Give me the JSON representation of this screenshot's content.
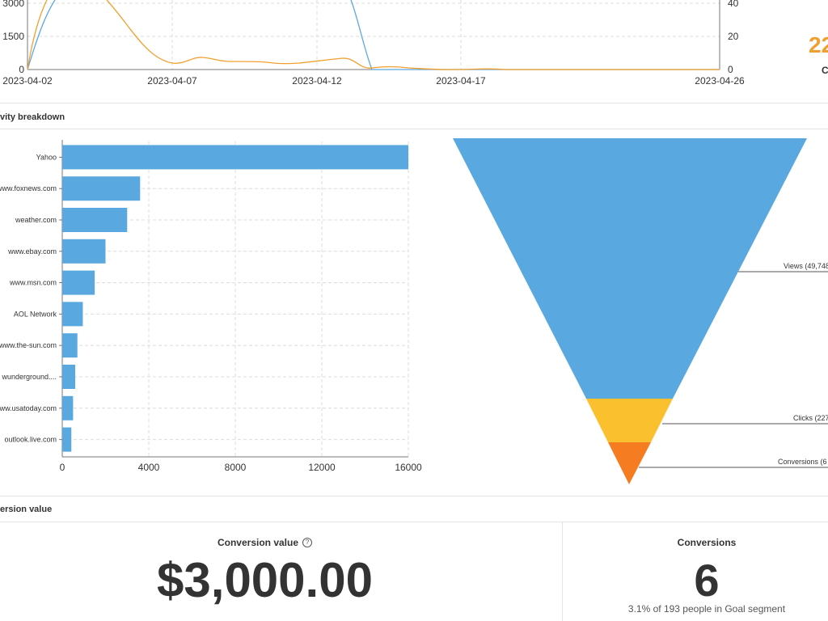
{
  "colors": {
    "blue": "#5aa8e0",
    "orange": "#f0a030",
    "yellow": "#fbc02d",
    "dark_orange": "#f57c20"
  },
  "timeseries": {
    "x_ticks": [
      "2023-04-02",
      "2023-04-07",
      "2023-04-12",
      "2023-04-17",
      "2023-04-26"
    ],
    "y_left_ticks": [
      "3000",
      "1500",
      "0"
    ],
    "y_right_ticks": [
      "40",
      "20",
      "0"
    ]
  },
  "kpi_partial": {
    "value": "22",
    "sub": "C"
  },
  "activity": {
    "title": "vity breakdown",
    "chart_data": {
      "type": "bar",
      "categories": [
        "Yahoo",
        "www.foxnews.com",
        "weather.com",
        "www.ebay.com",
        "www.msn.com",
        "AOL Network",
        "www.the-sun.com",
        "wunderground....",
        "ww.usatoday.com",
        "outlook.live.com"
      ],
      "values": [
        16000,
        3600,
        3000,
        2000,
        1500,
        950,
        700,
        600,
        500,
        420
      ],
      "xlim": [
        0,
        16000
      ],
      "x_ticks": [
        "0",
        "4000",
        "8000",
        "12000",
        "16000"
      ],
      "grid": true
    },
    "funnel": {
      "labels": [
        "Views (49,748",
        "Clicks (227",
        "Conversions (6"
      ]
    }
  },
  "conversion": {
    "title": "ersion value",
    "value_label": "Conversion value",
    "help_icon": "?",
    "value": "$3,000.00",
    "conv_label": "Conversions",
    "conv_value": "6",
    "conv_sub": "3.1% of 193 people in Goal segment"
  }
}
